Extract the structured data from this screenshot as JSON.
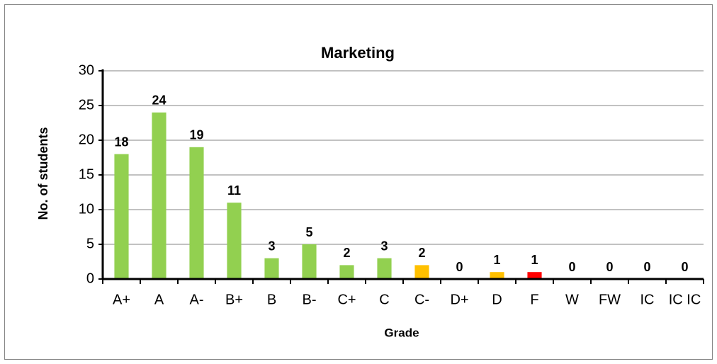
{
  "chart_data": {
    "type": "bar",
    "title": "Marketing",
    "x_label": "Grade",
    "y_label": "No. of students",
    "categories": [
      "A+",
      "A",
      "A-",
      "B+",
      "B",
      "B-",
      "C+",
      "C",
      "C-",
      "D+",
      "D",
      "F",
      "W",
      "FW",
      "IC",
      "IC IC"
    ],
    "values": [
      18,
      24,
      19,
      11,
      3,
      5,
      2,
      3,
      2,
      0,
      1,
      1,
      0,
      0,
      0,
      0
    ],
    "colors": [
      "#92d050",
      "#92d050",
      "#92d050",
      "#92d050",
      "#92d050",
      "#92d050",
      "#92d050",
      "#92d050",
      "#ffc000",
      "#92d050",
      "#ffc000",
      "#ff0000",
      "#92d050",
      "#92d050",
      "#92d050",
      "#92d050"
    ],
    "ylim": [
      0,
      30
    ],
    "yticks": [
      0,
      5,
      10,
      15,
      20,
      25,
      30
    ],
    "grid": true
  }
}
